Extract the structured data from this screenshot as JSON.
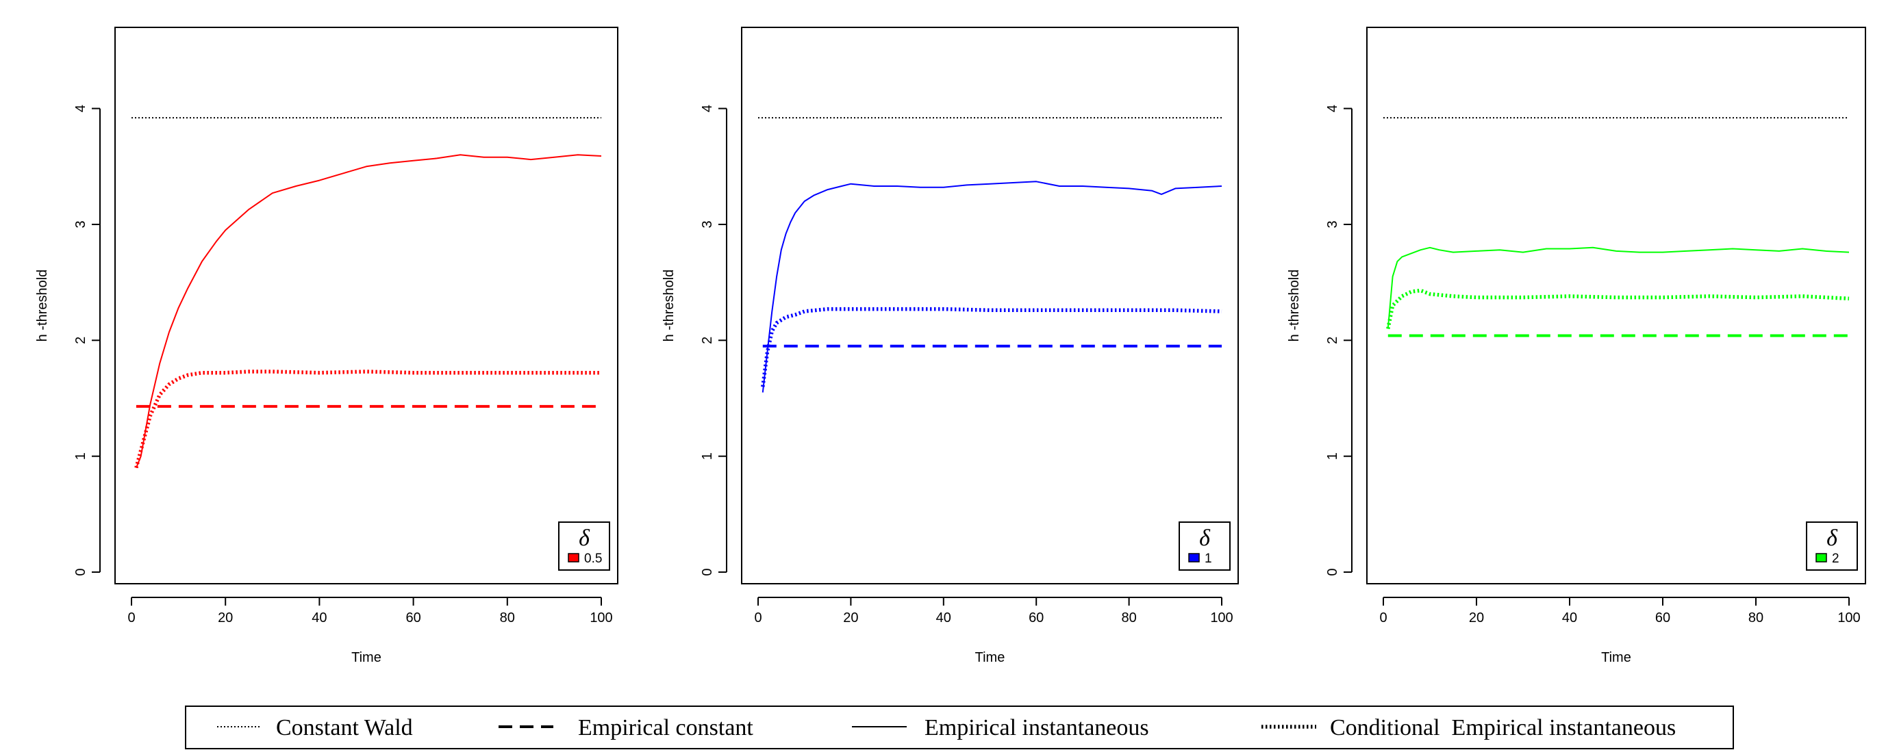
{
  "chart_data": [
    {
      "type": "line",
      "xlabel": "Time",
      "ylabel": "h -threshold",
      "xlim": [
        0,
        100
      ],
      "ylim": [
        -0.1,
        4.7
      ],
      "xticks": [
        0,
        20,
        40,
        60,
        80,
        100
      ],
      "yticks": [
        0,
        1,
        2,
        3,
        4
      ],
      "color": "#ff0000",
      "legend": {
        "title": "δ",
        "value": "0.5",
        "placement": "bottom-right"
      },
      "series": [
        {
          "style": "dotted-thin",
          "x": [
            0,
            100
          ],
          "y": [
            3.92,
            3.92
          ]
        },
        {
          "style": "dashed",
          "x": [
            1,
            100
          ],
          "y": [
            1.43,
            1.43
          ]
        },
        {
          "style": "solid",
          "x": [
            1,
            2,
            4,
            6,
            8,
            10,
            12,
            15,
            18,
            20,
            25,
            30,
            35,
            40,
            45,
            50,
            55,
            60,
            65,
            70,
            75,
            80,
            85,
            90,
            95,
            100
          ],
          "y": [
            0.9,
            1.0,
            1.45,
            1.8,
            2.07,
            2.28,
            2.45,
            2.68,
            2.85,
            2.95,
            3.13,
            3.27,
            3.33,
            3.38,
            3.44,
            3.5,
            3.53,
            3.55,
            3.57,
            3.6,
            3.58,
            3.58,
            3.56,
            3.58,
            3.6,
            3.59
          ]
        },
        {
          "style": "dotted-thick",
          "x": [
            1,
            2,
            4,
            6,
            8,
            10,
            12,
            15,
            20,
            25,
            30,
            40,
            50,
            60,
            70,
            80,
            90,
            100
          ],
          "y": [
            0.9,
            1.05,
            1.35,
            1.53,
            1.62,
            1.67,
            1.7,
            1.72,
            1.72,
            1.73,
            1.73,
            1.72,
            1.73,
            1.72,
            1.72,
            1.72,
            1.72,
            1.72
          ]
        }
      ]
    },
    {
      "type": "line",
      "xlabel": "Time",
      "ylabel": "h -threshold",
      "xlim": [
        0,
        100
      ],
      "ylim": [
        -0.1,
        4.7
      ],
      "xticks": [
        0,
        20,
        40,
        60,
        80,
        100
      ],
      "yticks": [
        0,
        1,
        2,
        3,
        4
      ],
      "color": "#0000ff",
      "legend": {
        "title": "δ",
        "value": "1",
        "placement": "bottom-right"
      },
      "series": [
        {
          "style": "dotted-thin",
          "x": [
            0,
            100
          ],
          "y": [
            3.92,
            3.92
          ]
        },
        {
          "style": "dashed",
          "x": [
            1,
            100
          ],
          "y": [
            1.95,
            1.95
          ]
        },
        {
          "style": "solid",
          "x": [
            1,
            2,
            3,
            4,
            5,
            6,
            7,
            8,
            10,
            12,
            15,
            18,
            20,
            25,
            30,
            35,
            40,
            45,
            50,
            55,
            60,
            65,
            70,
            75,
            80,
            85,
            87,
            90,
            95,
            100
          ],
          "y": [
            1.55,
            1.9,
            2.25,
            2.55,
            2.78,
            2.92,
            3.02,
            3.1,
            3.2,
            3.25,
            3.3,
            3.33,
            3.35,
            3.33,
            3.33,
            3.32,
            3.32,
            3.34,
            3.35,
            3.36,
            3.37,
            3.33,
            3.33,
            3.32,
            3.31,
            3.29,
            3.26,
            3.31,
            3.32,
            3.33
          ]
        },
        {
          "style": "dotted-thick",
          "x": [
            1,
            2,
            3,
            4,
            6,
            8,
            10,
            15,
            20,
            30,
            40,
            50,
            60,
            70,
            80,
            90,
            100
          ],
          "y": [
            1.6,
            1.9,
            2.08,
            2.15,
            2.2,
            2.22,
            2.25,
            2.27,
            2.27,
            2.27,
            2.27,
            2.26,
            2.26,
            2.26,
            2.26,
            2.26,
            2.25
          ]
        }
      ]
    },
    {
      "type": "line",
      "xlabel": "Time",
      "ylabel": "h -threshold",
      "xlim": [
        0,
        100
      ],
      "ylim": [
        -0.1,
        4.7
      ],
      "xticks": [
        0,
        20,
        40,
        60,
        80,
        100
      ],
      "yticks": [
        0,
        1,
        2,
        3,
        4
      ],
      "color": "#00ff00",
      "legend": {
        "title": "δ",
        "value": "2",
        "placement": "bottom-right"
      },
      "series": [
        {
          "style": "dotted-thin",
          "x": [
            0,
            100
          ],
          "y": [
            3.92,
            3.92
          ]
        },
        {
          "style": "dashed",
          "x": [
            1,
            100
          ],
          "y": [
            2.04,
            2.04
          ]
        },
        {
          "style": "solid",
          "x": [
            1,
            2,
            3,
            4,
            6,
            8,
            10,
            12,
            15,
            20,
            25,
            30,
            35,
            40,
            45,
            50,
            55,
            60,
            65,
            70,
            75,
            80,
            85,
            90,
            95,
            100
          ],
          "y": [
            2.1,
            2.55,
            2.68,
            2.72,
            2.75,
            2.78,
            2.8,
            2.78,
            2.76,
            2.77,
            2.78,
            2.76,
            2.79,
            2.79,
            2.8,
            2.77,
            2.76,
            2.76,
            2.77,
            2.78,
            2.79,
            2.78,
            2.77,
            2.79,
            2.77,
            2.76
          ]
        },
        {
          "style": "dotted-thick",
          "x": [
            1,
            2,
            4,
            6,
            8,
            10,
            15,
            20,
            30,
            40,
            50,
            60,
            70,
            80,
            90,
            100
          ],
          "y": [
            2.1,
            2.3,
            2.38,
            2.42,
            2.43,
            2.4,
            2.38,
            2.37,
            2.37,
            2.38,
            2.37,
            2.37,
            2.38,
            2.37,
            2.38,
            2.36
          ]
        }
      ]
    }
  ],
  "legend": {
    "items": [
      {
        "label": "Constant Wald",
        "style": "dotted-thin"
      },
      {
        "label": "Empirical constant",
        "style": "dashed"
      },
      {
        "label": "Empirical instantaneous",
        "style": "solid"
      },
      {
        "label": "Conditional  Empirical instantaneous",
        "style": "dotted-thick"
      }
    ]
  }
}
